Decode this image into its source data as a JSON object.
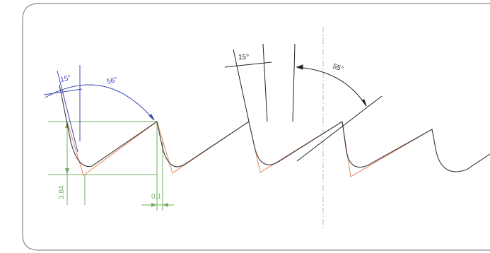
{
  "colors": {
    "frame": "#8a8a8a",
    "profile": "#3a3a3a",
    "flank": "#e8906e",
    "dim_blue": "#3a48b8",
    "dim_green": "#6fb060",
    "construction": "#b8b8b8",
    "annotation_black": "#222222"
  },
  "labels": {
    "blue_angle_small": "15°",
    "blue_angle_large": "56°",
    "black_angle_small": "15°",
    "black_angle_large": "55°",
    "green_height": "3.84",
    "green_gap": "0.1"
  }
}
